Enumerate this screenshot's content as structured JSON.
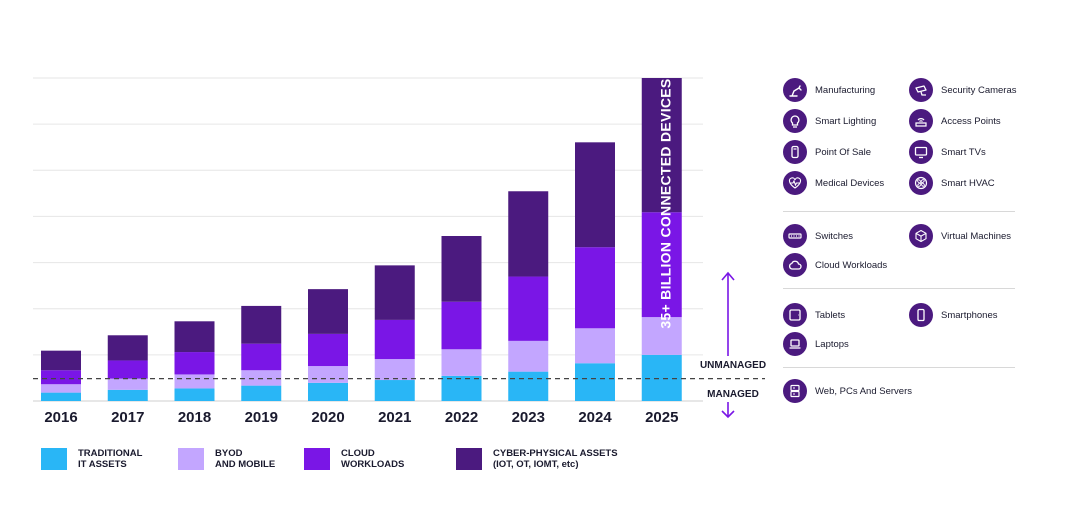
{
  "chart_data": {
    "type": "bar",
    "stacked": true,
    "categories": [
      "2016",
      "2017",
      "2018",
      "2019",
      "2020",
      "2021",
      "2022",
      "2023",
      "2024",
      "2025"
    ],
    "series": [
      {
        "name": "TRADITIONAL IT ASSETS",
        "color": "#29b6f6",
        "values": [
          6,
          8,
          9,
          11,
          13,
          15,
          18,
          21,
          27,
          33
        ]
      },
      {
        "name": "BYOD AND MOBILE",
        "color": "#c3a6ff",
        "values": [
          6,
          8,
          10,
          11,
          12,
          15,
          19,
          22,
          25,
          27
        ]
      },
      {
        "name": "CLOUD WORKLOADS",
        "color": "#7a16e6",
        "values": [
          10,
          13,
          16,
          19,
          23,
          28,
          34,
          46,
          58,
          75
        ]
      },
      {
        "name": "CYBER-PHYSICAL ASSETS (IOT, OT, IOMT, etc)",
        "color": "#4b1a7f",
        "values": [
          14,
          18,
          22,
          27,
          32,
          39,
          47,
          61,
          75,
          96
        ]
      }
    ],
    "ylim": [
      0,
      231
    ],
    "grid": true,
    "legend_position": "bottom",
    "threshold_value": 16,
    "banner_text": "35+ BILLION CONNECTED DEVICES",
    "zone_labels": {
      "above": "UNMANAGED",
      "below": "MANAGED"
    }
  },
  "legend": [
    {
      "lines": [
        "TRADITIONAL",
        "IT ASSETS"
      ],
      "color": "#29b6f6"
    },
    {
      "lines": [
        "BYOD",
        "AND MOBILE"
      ],
      "color": "#c3a6ff"
    },
    {
      "lines": [
        "CLOUD",
        "WORKLOADS"
      ],
      "color": "#7a16e6"
    },
    {
      "lines": [
        "CYBER-PHYSICAL ASSETS",
        "(IOT, OT, IOMT, etc)"
      ],
      "color": "#4b1a7f"
    }
  ],
  "device_groups": [
    {
      "items": [
        {
          "label": "Manufacturing",
          "icon": "robot-arm-icon"
        },
        {
          "label": "Security Cameras",
          "icon": "security-camera-icon"
        },
        {
          "label": "Smart Lighting",
          "icon": "light-bulb-icon"
        },
        {
          "label": "Access Points",
          "icon": "wifi-router-icon"
        },
        {
          "label": "Point Of Sale",
          "icon": "pos-terminal-icon"
        },
        {
          "label": "Smart TVs",
          "icon": "tv-icon"
        },
        {
          "label": "Medical Devices",
          "icon": "heartbeat-icon"
        },
        {
          "label": "Smart HVAC",
          "icon": "fan-icon"
        }
      ]
    },
    {
      "items": [
        {
          "label": "Switches",
          "icon": "network-switch-icon"
        },
        {
          "label": "Virtual Machines",
          "icon": "cube-icon"
        },
        {
          "label": "Cloud Workloads",
          "icon": "cloud-icon"
        }
      ]
    },
    {
      "items": [
        {
          "label": "Tablets",
          "icon": "tablet-icon"
        },
        {
          "label": "Smartphones",
          "icon": "smartphone-icon"
        },
        {
          "label": "Laptops",
          "icon": "laptop-icon"
        }
      ]
    },
    {
      "items": [
        {
          "label": "Web, PCs And Servers",
          "icon": "server-icon"
        }
      ]
    }
  ]
}
